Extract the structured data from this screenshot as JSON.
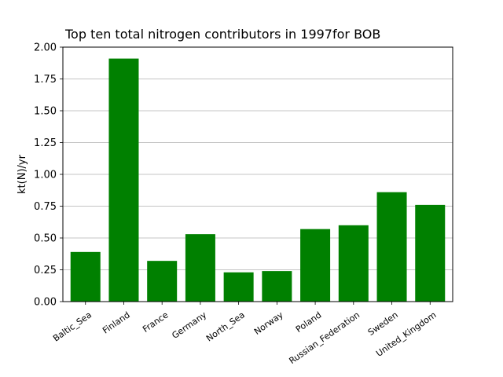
{
  "chart_data": {
    "type": "bar",
    "title": "Top ten total nitrogen contributors in 1997for  BOB",
    "xlabel": "",
    "ylabel": "kt(N)/yr",
    "categories": [
      "Baltic_Sea",
      "Finland",
      "France",
      "Germany",
      "North_Sea",
      "Norway",
      "Poland",
      "Russian_Federation",
      "Sweden",
      "United_Kingdom"
    ],
    "values": [
      0.39,
      1.91,
      0.32,
      0.53,
      0.23,
      0.24,
      0.57,
      0.6,
      0.86,
      0.76
    ],
    "ylim": [
      0,
      2.0
    ],
    "yticks": [
      "0.00",
      "0.25",
      "0.50",
      "0.75",
      "1.00",
      "1.25",
      "1.50",
      "1.75",
      "2.00"
    ],
    "grid": "horizontal",
    "bar_color": "#008000"
  }
}
